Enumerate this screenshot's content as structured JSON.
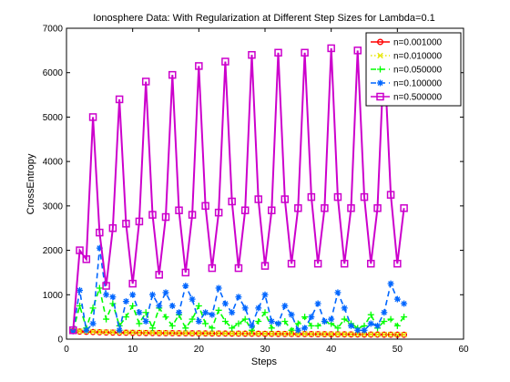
{
  "chart_data": {
    "type": "line",
    "title": "Ionosphere Data: With Regularization at Different Step Sizes for Lambda=0.1",
    "xlabel": "Steps",
    "ylabel": "CrossEntropy",
    "xlim": [
      0,
      60
    ],
    "ylim": [
      0,
      7000
    ],
    "xticks": [
      0,
      10,
      20,
      30,
      40,
      50,
      60
    ],
    "yticks": [
      0,
      1000,
      2000,
      3000,
      4000,
      5000,
      6000,
      7000
    ],
    "grid": false,
    "legend_position": "top-right",
    "x": [
      1,
      2,
      3,
      4,
      5,
      6,
      7,
      8,
      9,
      10,
      11,
      12,
      13,
      14,
      15,
      16,
      17,
      18,
      19,
      20,
      21,
      22,
      23,
      24,
      25,
      26,
      27,
      28,
      29,
      30,
      31,
      32,
      33,
      34,
      35,
      36,
      37,
      38,
      39,
      40,
      41,
      42,
      43,
      44,
      45,
      46,
      47,
      48,
      49,
      50,
      51
    ],
    "series": [
      {
        "name": "n=0.001000",
        "color": "#ff0000",
        "line": "solid",
        "marker": "circle",
        "values": [
          180,
          170,
          165,
          160,
          155,
          150,
          148,
          146,
          144,
          142,
          140,
          138,
          137,
          136,
          135,
          134,
          133,
          132,
          131,
          130,
          129,
          128,
          127,
          126,
          125,
          124,
          123,
          122,
          121,
          120,
          119,
          118,
          117,
          116,
          115,
          114,
          113,
          112,
          111,
          110,
          109,
          108,
          107,
          106,
          105,
          104,
          103,
          102,
          101,
          100,
          99
        ]
      },
      {
        "name": "n=0.010000",
        "color": "#e6e600",
        "line": "dotted",
        "marker": "x",
        "values": [
          185,
          180,
          175,
          170,
          165,
          160,
          158,
          155,
          152,
          150,
          148,
          146,
          144,
          142,
          140,
          138,
          136,
          135,
          134,
          133,
          132,
          131,
          130,
          129,
          128,
          127,
          126,
          125,
          124,
          123,
          122,
          121,
          120,
          119,
          118,
          117,
          116,
          115,
          114,
          113,
          112,
          111,
          110,
          109,
          108,
          107,
          106,
          105,
          104,
          103,
          102
        ]
      },
      {
        "name": "n=0.050000",
        "color": "#00ff00",
        "line": "dashed",
        "marker": "plus",
        "values": [
          190,
          750,
          250,
          700,
          1150,
          450,
          800,
          300,
          500,
          750,
          350,
          600,
          250,
          700,
          500,
          300,
          550,
          250,
          450,
          750,
          350,
          250,
          650,
          400,
          250,
          350,
          450,
          200,
          400,
          600,
          250,
          350,
          400,
          200,
          350,
          500,
          300,
          300,
          400,
          350,
          250,
          450,
          350,
          250,
          300,
          550,
          250,
          400,
          450,
          300,
          500
        ]
      },
      {
        "name": "n=0.100000",
        "color": "#0066ff",
        "line": "dashed",
        "marker": "star",
        "values": [
          180,
          1100,
          200,
          350,
          2050,
          1000,
          950,
          200,
          850,
          1000,
          600,
          400,
          1000,
          750,
          1050,
          750,
          600,
          1200,
          900,
          400,
          600,
          550,
          1150,
          800,
          600,
          950,
          700,
          300,
          700,
          1000,
          400,
          350,
          750,
          550,
          200,
          250,
          500,
          800,
          400,
          450,
          1050,
          700,
          300,
          200,
          200,
          350,
          300,
          600,
          1250,
          900,
          800
        ]
      },
      {
        "name": "n=0.500000",
        "color": "#cc00cc",
        "line": "solid",
        "marker": "square",
        "values": [
          200,
          2000,
          1800,
          5000,
          2400,
          1200,
          2500,
          5400,
          2600,
          1250,
          2650,
          5800,
          2800,
          1450,
          2750,
          5950,
          2900,
          1500,
          2800,
          6150,
          3000,
          1600,
          2850,
          6250,
          3100,
          1600,
          2900,
          6400,
          3150,
          1650,
          2900,
          6450,
          3150,
          1700,
          2950,
          6450,
          3200,
          1700,
          2950,
          6550,
          3200,
          1700,
          2950,
          6500,
          3200,
          1700,
          2950,
          6450,
          3250,
          1700,
          2950
        ]
      }
    ]
  }
}
